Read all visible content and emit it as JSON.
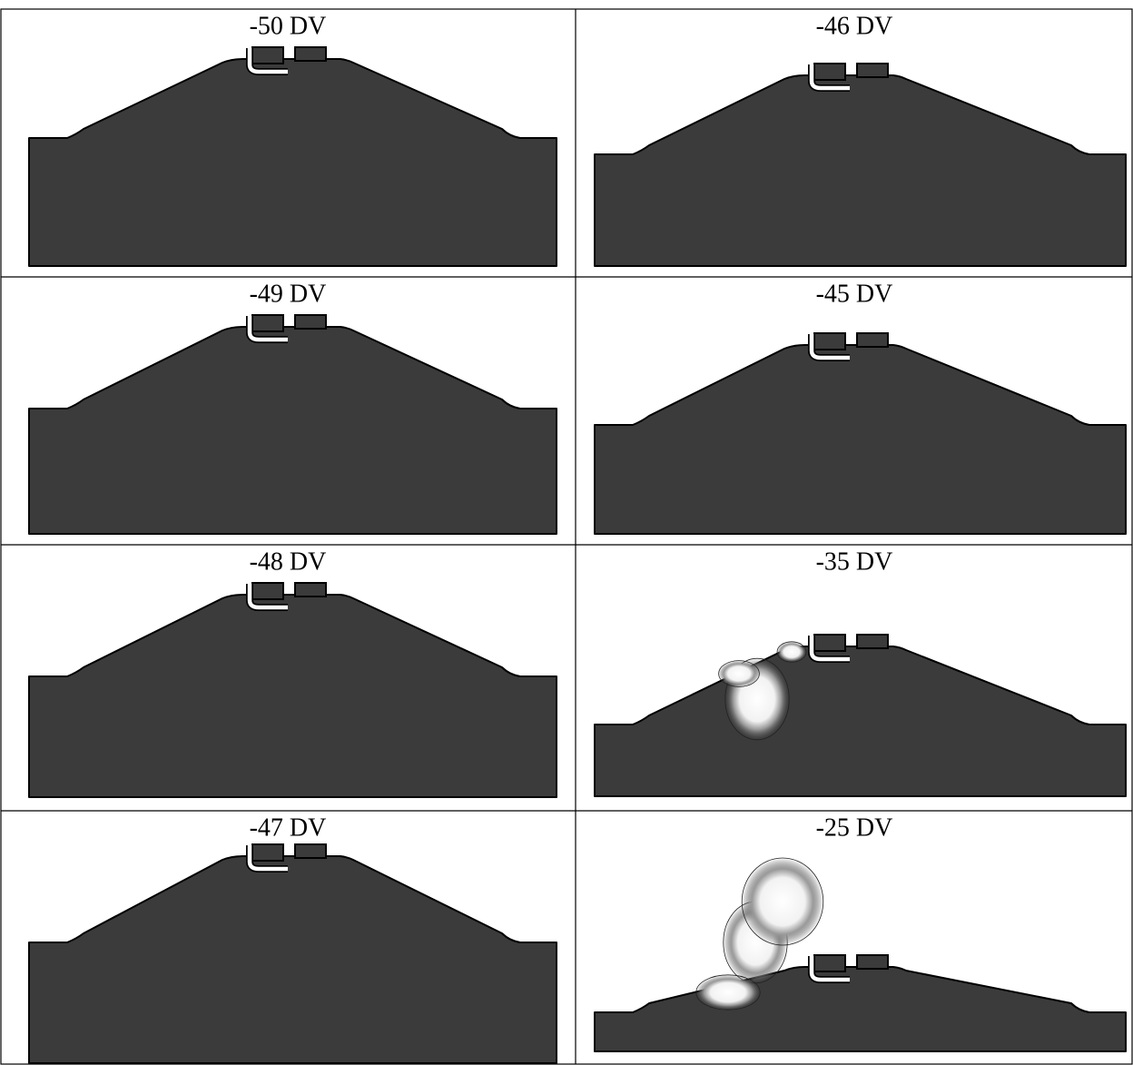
{
  "panels": [
    "-50 DV",
    "-46 DV",
    "-49 DV",
    "-45 DV",
    "-48 DV",
    "-35 DV",
    "-47 DV",
    "-25 DV"
  ]
}
